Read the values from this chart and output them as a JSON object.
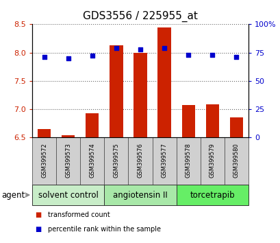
{
  "title": "GDS3556 / 225955_at",
  "samples": [
    "GSM399572",
    "GSM399573",
    "GSM399574",
    "GSM399575",
    "GSM399576",
    "GSM399577",
    "GSM399578",
    "GSM399579",
    "GSM399580"
  ],
  "transformed_counts": [
    6.65,
    6.54,
    6.93,
    8.13,
    7.99,
    8.45,
    7.07,
    7.08,
    6.85
  ],
  "percentile_ranks": [
    71,
    70,
    72,
    79,
    78,
    79,
    73,
    73,
    71
  ],
  "ylim_left": [
    6.5,
    8.5
  ],
  "ylim_right": [
    0,
    100
  ],
  "yticks_left": [
    6.5,
    7.0,
    7.5,
    8.0,
    8.5
  ],
  "yticks_right": [
    0,
    25,
    50,
    75,
    100
  ],
  "yticklabels_right": [
    "0",
    "25",
    "50",
    "75",
    "100%"
  ],
  "groups": [
    {
      "label": "solvent control",
      "indices": [
        0,
        1,
        2
      ],
      "color": "#c8edc8"
    },
    {
      "label": "angiotensin II",
      "indices": [
        3,
        4,
        5
      ],
      "color": "#a8e8a8"
    },
    {
      "label": "torcetrapib",
      "indices": [
        6,
        7,
        8
      ],
      "color": "#66ee66"
    }
  ],
  "bar_color": "#cc2200",
  "scatter_color": "#0000cc",
  "bar_width": 0.55,
  "sample_bg": "#d0d0d0",
  "agent_label": "agent",
  "legend_bar_label": "transformed count",
  "legend_scatter_label": "percentile rank within the sample",
  "title_fontsize": 11,
  "tick_fontsize": 8,
  "sample_fontsize": 6,
  "group_fontsize": 8.5
}
